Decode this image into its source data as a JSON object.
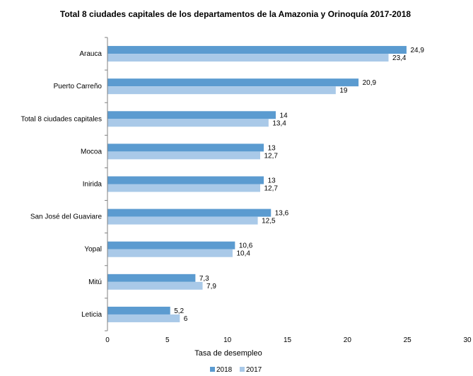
{
  "chart_data": {
    "type": "bar",
    "orientation": "horizontal",
    "title": "Total 8 ciudades capitales de los departamentos de la Amazonia y Orinoquía 2017-2018",
    "xlabel": "Tasa de desempleo",
    "ylabel": "",
    "categories": [
      "Arauca",
      "Puerto Carreño",
      "Total 8 ciudades capitales",
      "Mocoa",
      "Inirida",
      "San José del Guaviare",
      "Yopal",
      "Mitú",
      "Leticia"
    ],
    "series": [
      {
        "name": "2018",
        "color": "#5b9bd0",
        "values": [
          24.9,
          20.9,
          14,
          13,
          13,
          13.6,
          10.6,
          7.3,
          5.2
        ],
        "labels": [
          "24,9",
          "20,9",
          "14",
          "13",
          "13",
          "13,6",
          "10,6",
          "7,3",
          "5,2"
        ]
      },
      {
        "name": "2017",
        "color": "#a9c9e8",
        "values": [
          23.4,
          19,
          13.4,
          12.7,
          12.7,
          12.5,
          10.4,
          7.9,
          6
        ],
        "labels": [
          "23,4",
          "19",
          "13,4",
          "12,7",
          "12,7",
          "12,5",
          "10,4",
          "7,9",
          "6"
        ]
      }
    ],
    "xlim": [
      0,
      30
    ],
    "xticks": [
      "0",
      "5",
      "10",
      "15",
      "20",
      "25",
      "30"
    ],
    "grid": false,
    "legend_position": "bottom"
  }
}
